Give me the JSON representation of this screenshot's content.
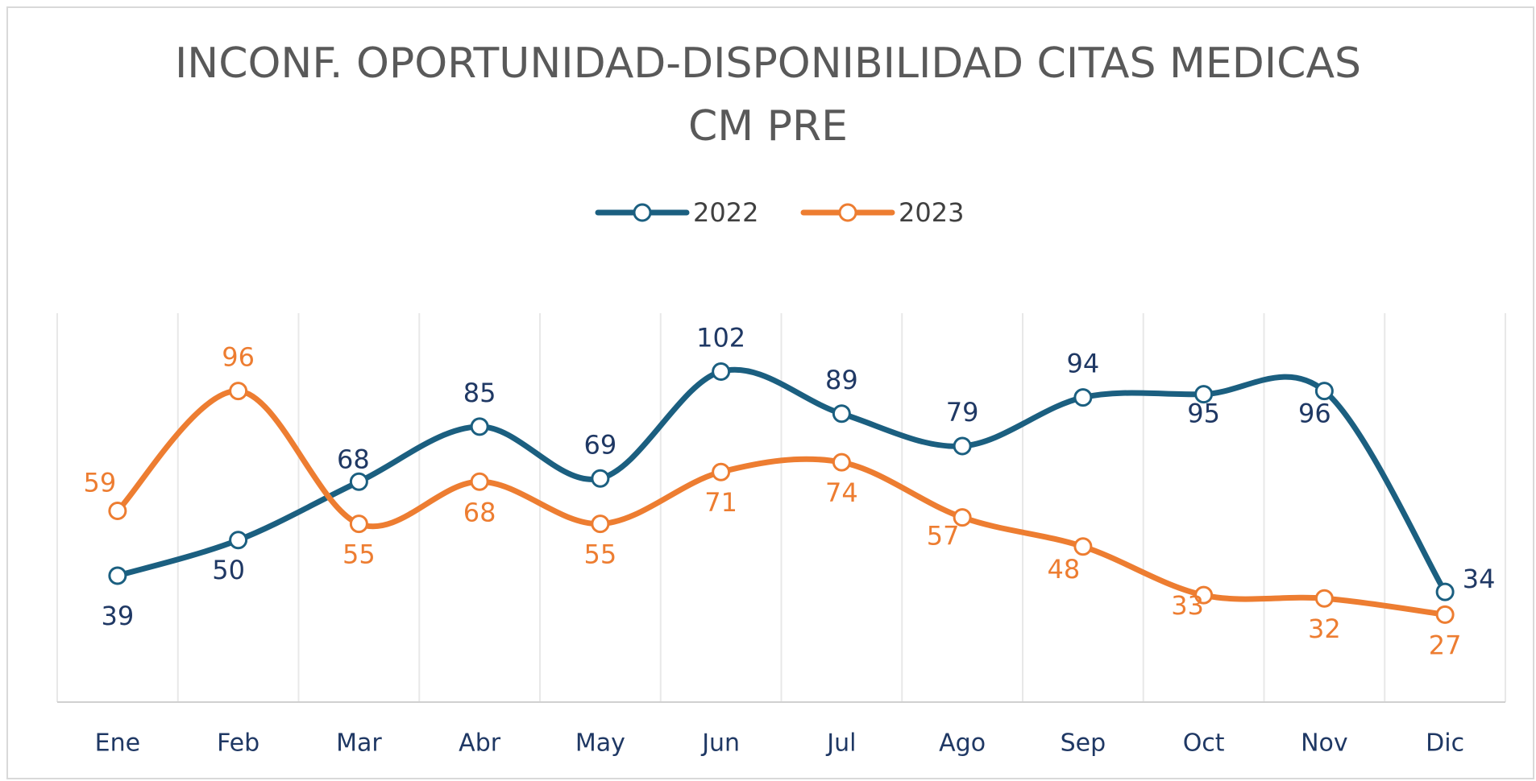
{
  "chart_data": {
    "type": "line",
    "title": "INCONF. OPORTUNIDAD-DISPONIBILIDAD CITAS MEDICAS CM PRE",
    "categories": [
      "Ene",
      "Feb",
      "Mar",
      "Abr",
      "May",
      "Jun",
      "Jul",
      "Ago",
      "Sep",
      "Oct",
      "Nov",
      "Dic"
    ],
    "series": [
      {
        "name": "2022",
        "color": "#1b5f80",
        "values": [
          39,
          50,
          68,
          85,
          69,
          102,
          89,
          79,
          94,
          95,
          96,
          34
        ]
      },
      {
        "name": "2023",
        "color": "#ed7d31",
        "values": [
          59,
          96,
          55,
          68,
          55,
          71,
          74,
          57,
          48,
          33,
          32,
          27
        ]
      }
    ],
    "ylim": [
      0,
      120
    ],
    "smooth": true,
    "legend": "top",
    "grid": true
  }
}
